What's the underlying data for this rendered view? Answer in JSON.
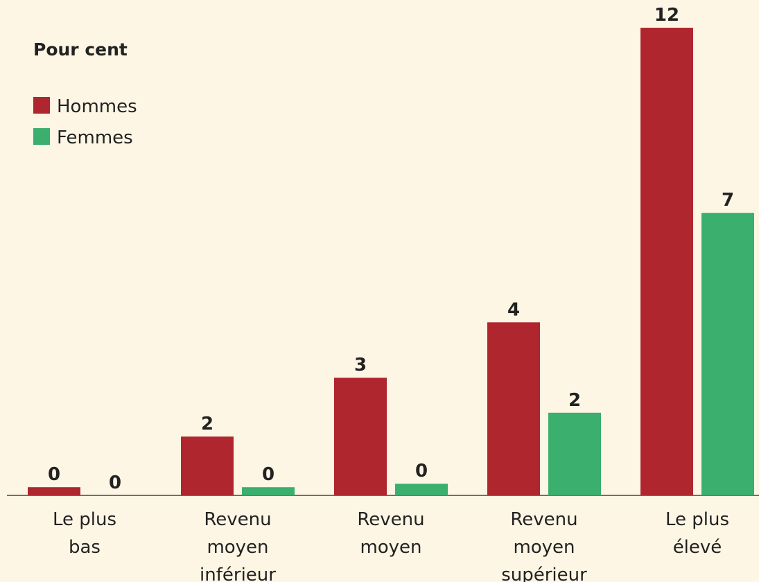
{
  "chart_data": {
    "type": "bar",
    "title": "Pour cent",
    "categories": [
      "Le plus bas",
      "Revenu moyen inférieur",
      "Revenu moyen",
      "Revenu moyen supérieur",
      "Le plus élevé"
    ],
    "series": [
      {
        "name": "Hommes",
        "color": "#b0262e",
        "values": [
          0.21,
          1.51,
          3.02,
          4.44,
          12
        ],
        "value_labels": [
          "0",
          "2",
          "3",
          "4",
          "12"
        ]
      },
      {
        "name": "Femmes",
        "color": "#3aaf6e",
        "values": [
          0,
          0.21,
          0.3,
          2.12,
          7.25
        ],
        "value_labels": [
          "0",
          "0",
          "0",
          "2",
          "7"
        ]
      }
    ],
    "ylim": [
      0,
      12
    ],
    "legend": "top-left"
  }
}
